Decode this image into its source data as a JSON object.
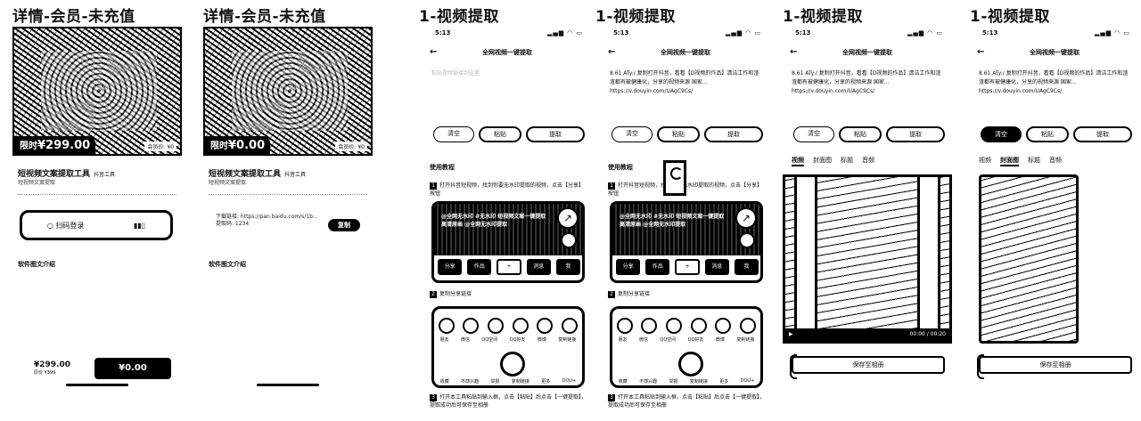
{
  "panels": [
    {
      "title": "详情-会员-未充值"
    },
    {
      "title": "详情-会员-未充值"
    },
    {
      "title": "1-视频提取"
    },
    {
      "title": "1-视频提取"
    },
    {
      "title": "1-视频提取"
    },
    {
      "title": "1-视频提取"
    }
  ],
  "detail": {
    "price_label": "限时",
    "price_1": "¥299.00",
    "price_2": "¥0.00",
    "members": "会员价: ¥0",
    "product_name": "短视频文案提取工具",
    "product_tag": "抖音工具",
    "product_sub": "短视频文案提取",
    "scan_text": "○ 扫码登录",
    "dl_text": "下载链接: https://pan.baidu.com/s/1b... 提取码: 1234",
    "copy_label": "复制",
    "section": "软件图文介绍",
    "bottom_price": "¥299.00",
    "bottom_price_sub": "原价 ¥399",
    "buy_label": "¥0.00"
  },
  "extract": {
    "time": "5:13",
    "signal": "▂▄▆ ◠ ▭",
    "nav_title": "全网视频一键提取",
    "back": "←",
    "placeholder_text": "粘贴视频链接到这里",
    "link_text": "8.61 ATy:/ 复制打开抖音，看看【D视频的作品】清洁工作和渣渣都有被健康化，分享的视频来源 国家... https://v.douyin.com/UAgC9Cs/",
    "btn_clear": "清空",
    "btn_paste": "粘贴",
    "btn_extract": "提取",
    "tutorial": "使用教程",
    "step1": "打开抖音短视频，找到你要无水印提取的视频，点击【分享】按钮",
    "step2": "复制分享链接",
    "step3": "打开本工具粘贴到输入框，点击【粘贴】后点击【一键提取】，提取成功后可保存至相册",
    "bubble": "@全网无水印 #无水印 短视频文案一键提取 高清原画 @全网无水印提取",
    "btns": [
      "分享",
      "作品",
      "+",
      "消息",
      "我"
    ],
    "share_labels": [
      "朋友",
      "微信",
      "QQ空间",
      "QQ好友",
      "微博",
      "复制链接"
    ],
    "share_labels_2": [
      "收藏",
      "不感兴趣",
      "举报",
      "复制链接",
      "更多",
      "DOU+"
    ],
    "tabs": [
      "视频",
      "封面图",
      "标题",
      "音频"
    ],
    "video_time": "00:00 / 00:20",
    "save_label": "保存至相册"
  }
}
